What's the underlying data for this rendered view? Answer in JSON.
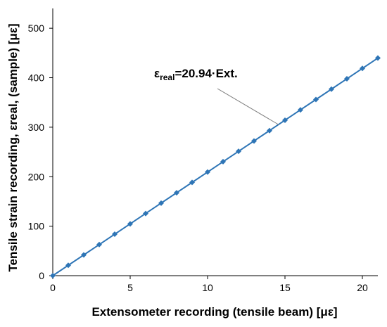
{
  "chart_data": {
    "type": "line",
    "xlabel": "Extensometer recording (tensile beam) [με]",
    "ylabel": "Tensile strain recording, εreal, (sample) [με]",
    "xlim": [
      0,
      21
    ],
    "ylim": [
      0,
      540
    ],
    "x_ticks": [
      "0",
      "5",
      "10",
      "15",
      "20"
    ],
    "y_ticks": [
      "0",
      "100",
      "200",
      "300",
      "400",
      "500"
    ],
    "grid": false,
    "legend": "none",
    "series": [
      {
        "color": "#2e75b6",
        "marker": "diamond",
        "x": [
          0,
          1,
          2,
          3,
          4,
          5,
          6,
          7,
          8,
          9,
          10,
          11,
          12,
          13,
          14,
          15,
          16,
          17,
          18,
          19,
          20,
          21
        ],
        "y": [
          0,
          20.94,
          41.88,
          62.82,
          83.76,
          104.7,
          125.64,
          146.58,
          167.52,
          188.46,
          209.4,
          230.34,
          251.28,
          272.22,
          293.16,
          314.1,
          335.04,
          355.98,
          376.92,
          397.86,
          418.8,
          439.74
        ]
      }
    ],
    "annotations": [
      {
        "text_main": "ε",
        "text_sub": "real",
        "text_rest": "=20.94·Ext.",
        "points_to": {
          "x": 14.6,
          "y": 305
        }
      }
    ]
  },
  "colors": {
    "series": "#2e75b6",
    "axis": "#000000",
    "leader": "#808080"
  }
}
